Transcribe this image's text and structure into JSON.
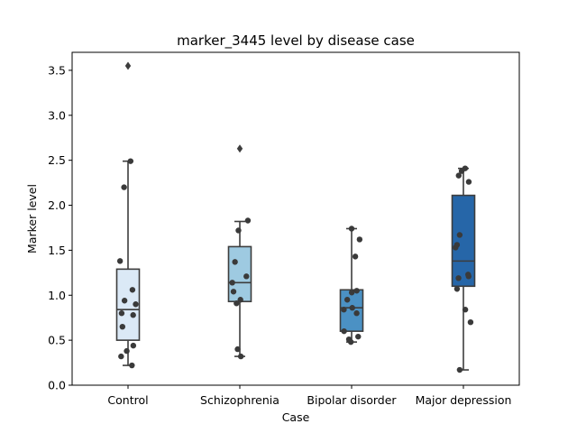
{
  "chart_data": {
    "type": "box",
    "title": "marker_3445 level by disease case",
    "xlabel": "Case",
    "ylabel": "Marker level",
    "ylim": [
      0.0,
      3.7
    ],
    "yticks": [
      "0.0",
      "0.5",
      "1.0",
      "1.5",
      "2.0",
      "2.5",
      "3.0",
      "3.5"
    ],
    "grid": false,
    "categories": [
      "Control",
      "Schizophrenia",
      "Bipolar disorder",
      "Major depression"
    ],
    "colors": [
      "#dbe9f6",
      "#9ecae1",
      "#4b91c4",
      "#2666a8"
    ],
    "boxes": [
      {
        "q1": 0.5,
        "median": 0.84,
        "q3": 1.29,
        "whisker_low": 0.22,
        "whisker_high": 2.49,
        "outliers": [
          3.55
        ],
        "points": [
          0.22,
          0.32,
          0.38,
          0.44,
          0.65,
          0.78,
          0.8,
          0.9,
          0.94,
          1.06,
          1.38,
          2.2,
          2.49
        ]
      },
      {
        "q1": 0.93,
        "median": 1.14,
        "q3": 1.54,
        "whisker_low": 0.32,
        "whisker_high": 1.82,
        "outliers": [
          2.63
        ],
        "points": [
          0.32,
          0.4,
          0.91,
          0.95,
          1.04,
          1.14,
          1.21,
          1.37,
          1.72,
          1.83
        ]
      },
      {
        "q1": 0.6,
        "median": 0.86,
        "q3": 1.06,
        "whisker_low": 0.48,
        "whisker_high": 1.74,
        "outliers": [],
        "points": [
          0.48,
          0.51,
          0.54,
          0.6,
          0.8,
          0.84,
          0.86,
          0.95,
          1.03,
          1.05,
          1.43,
          1.62,
          1.74
        ]
      },
      {
        "q1": 1.1,
        "median": 1.38,
        "q3": 2.11,
        "whisker_low": 0.17,
        "whisker_high": 2.41,
        "outliers": [],
        "points": [
          0.17,
          0.7,
          0.84,
          1.07,
          1.19,
          1.21,
          1.23,
          1.53,
          1.56,
          1.67,
          2.26,
          2.33,
          2.38,
          2.41
        ]
      }
    ]
  }
}
